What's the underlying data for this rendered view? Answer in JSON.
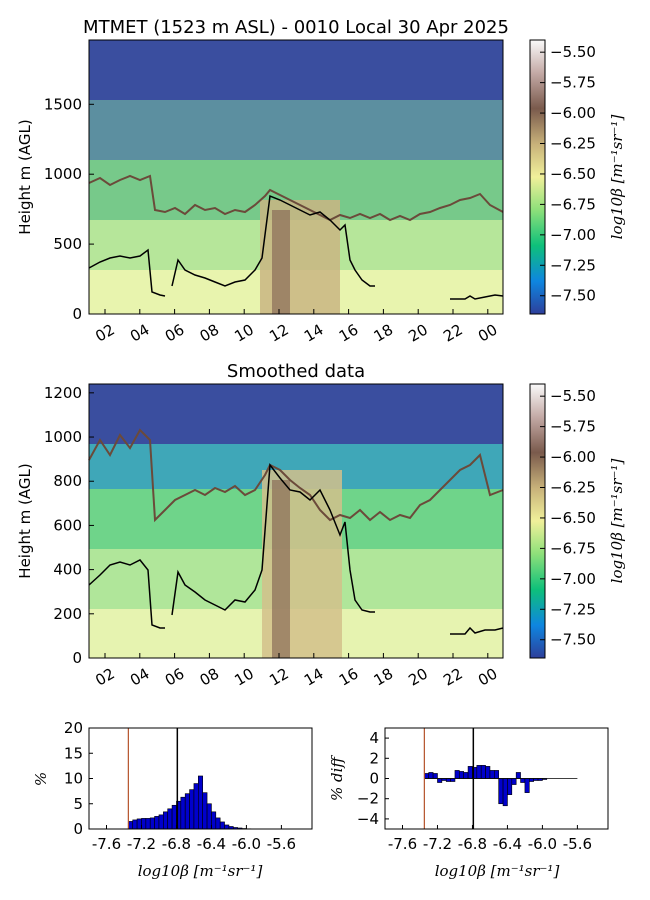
{
  "chart_data": [
    {
      "type": "heatmap",
      "title": "MTMET (1523 m ASL) - 0010 Local 30 Apr 2025",
      "ylabel": "Height m (AGL)",
      "ylim": [
        0,
        1960
      ],
      "yticks": [
        "0",
        "500",
        "1000",
        "1500"
      ],
      "xticks": [
        "02",
        "04",
        "06",
        "08",
        "10",
        "12",
        "14",
        "16",
        "18",
        "20",
        "22",
        "00"
      ],
      "colorbar": {
        "label": "log10β [m⁻¹sr⁻¹]",
        "ticks": [
          "-5.50",
          "-5.75",
          "-6.00",
          "-6.25",
          "-6.50",
          "-6.75",
          "-7.00",
          "-7.25",
          "-7.50"
        ],
        "range": [
          -7.65,
          -5.4
        ]
      },
      "line_upper_color": "#6b4a3a",
      "line_lower_color": "#000000"
    },
    {
      "type": "heatmap",
      "title": "Smoothed data",
      "ylabel": "Height m (AGL)",
      "ylim": [
        0,
        1240
      ],
      "yticks": [
        "0",
        "200",
        "400",
        "600",
        "800",
        "1000",
        "1200"
      ],
      "xticks": [
        "02",
        "04",
        "06",
        "08",
        "10",
        "12",
        "14",
        "16",
        "18",
        "20",
        "22",
        "00"
      ],
      "colorbar": {
        "label": "log10β [m⁻¹sr⁻¹]",
        "ticks": [
          "-5.50",
          "-5.75",
          "-6.00",
          "-6.25",
          "-6.50",
          "-6.75",
          "-7.00",
          "-7.25",
          "-7.50"
        ],
        "range": [
          -7.65,
          -5.4
        ]
      }
    },
    {
      "type": "bar",
      "ylabel": "%",
      "xlabel": "log10β [m⁻¹sr⁻¹]",
      "xlim": [
        -7.8,
        -5.25
      ],
      "ylim": [
        0,
        20
      ],
      "xticks": [
        "-7.6",
        "-7.2",
        "-6.8",
        "-6.4",
        "-6.0",
        "-5.6"
      ],
      "yticks": [
        "0",
        "5",
        "10",
        "15",
        "20"
      ],
      "bin_width": 0.05,
      "bin_start": -7.35,
      "values": [
        1.5,
        1.8,
        2.0,
        2.1,
        2.1,
        2.2,
        2.5,
        2.8,
        3.4,
        4.0,
        4.7,
        5.5,
        6.3,
        7.0,
        7.8,
        9.0,
        10.5,
        7.2,
        5.0,
        3.4,
        2.2,
        1.4,
        0.8,
        0.5,
        0.3,
        0.2,
        0.1,
        0.05
      ],
      "vline_red": -7.35,
      "vline_black": -6.79,
      "bar_color": "#0000cc",
      "vline_red_color": "#b5522b"
    },
    {
      "type": "bar",
      "ylabel": "% diff",
      "xlabel": "log10β [m⁻¹sr⁻¹]",
      "xlim": [
        -7.8,
        -5.25
      ],
      "ylim": [
        -5,
        5
      ],
      "xticks": [
        "-7.6",
        "-7.2",
        "-6.8",
        "-6.4",
        "-6.0",
        "-5.6"
      ],
      "yticks": [
        "4",
        "2",
        "0",
        "−2",
        "−4"
      ],
      "bin_width": 0.05,
      "bin_start": -7.35,
      "values": [
        0.5,
        0.6,
        0.5,
        -0.4,
        -0.2,
        -0.3,
        -0.3,
        0.8,
        0.7,
        0.6,
        1.2,
        1.1,
        1.3,
        1.3,
        1.2,
        0.8,
        0.8,
        -2.5,
        -2.7,
        -1.6,
        -0.6,
        0.6,
        -0.4,
        -1.4,
        -0.3,
        -0.2,
        -0.2,
        -0.1
      ],
      "vline_red": -7.35,
      "vline_black": -6.79,
      "bar_color": "#0000cc",
      "vline_red_color": "#b5522b"
    }
  ]
}
